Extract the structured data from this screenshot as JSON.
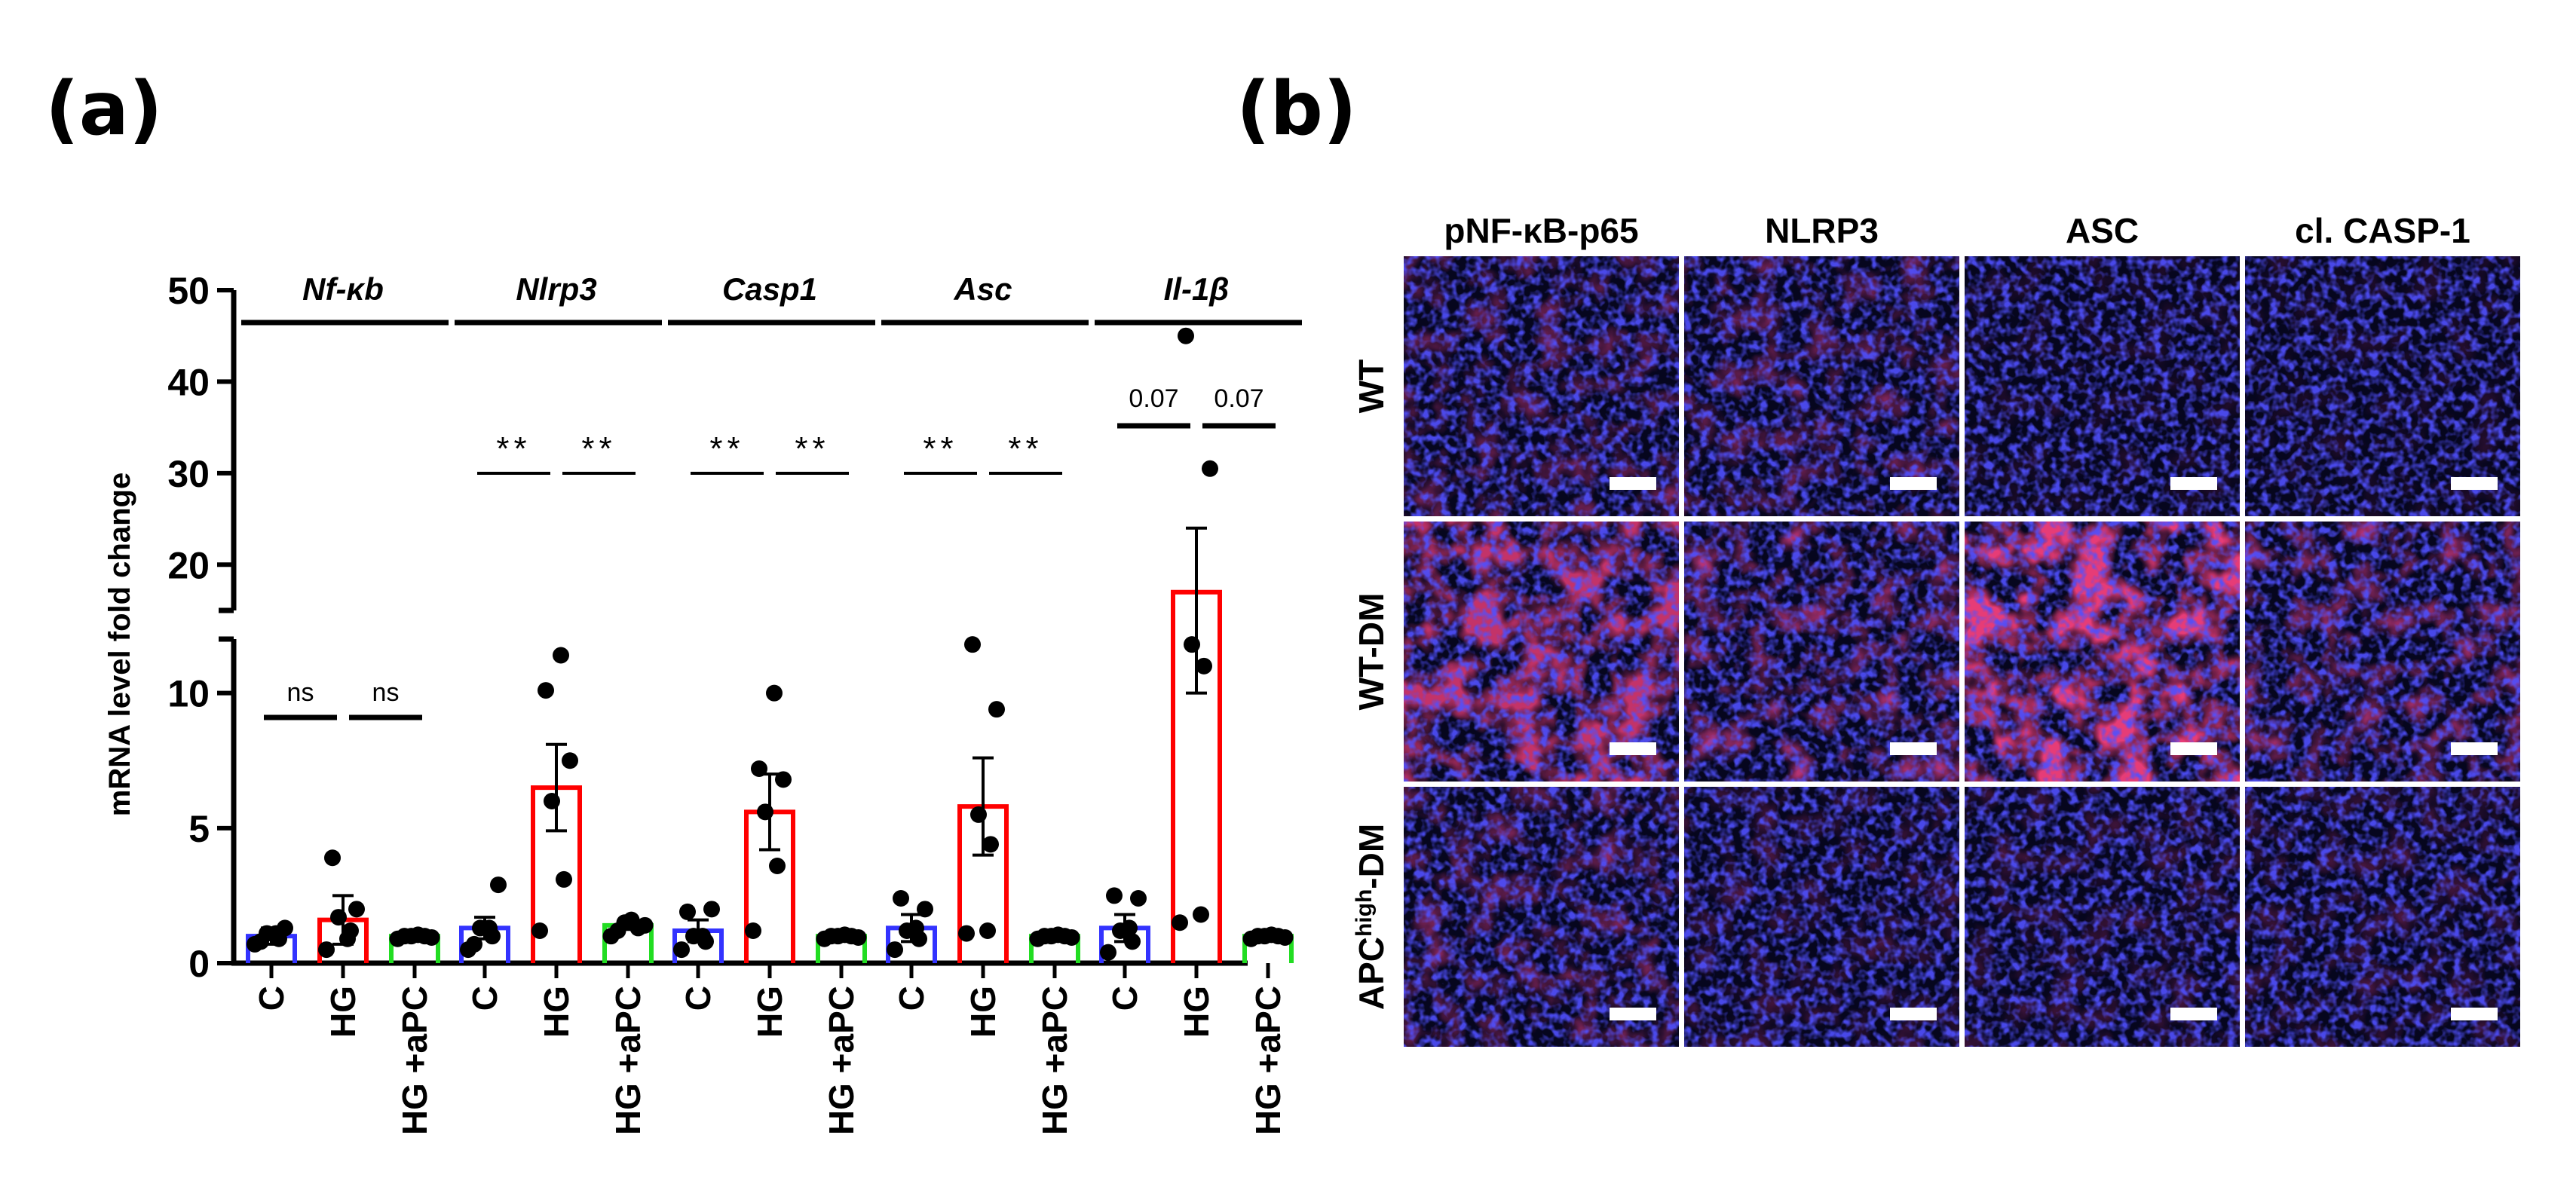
{
  "panel_a_label": "(a)",
  "panel_b_label": "(b)",
  "colors": {
    "C": "#3333ff",
    "HG": "#ff0000",
    "HG_aPC": "#22dd22",
    "tissue_blue": "#1a1adc",
    "tissue_red": "#c8103a"
  },
  "chart_data": {
    "type": "bar",
    "ylabel": "mRNA level fold change",
    "ylim_lower": [
      0,
      12
    ],
    "ylim_upper": [
      15,
      50
    ],
    "y_ticks_lower": [
      "0",
      "5",
      "10"
    ],
    "y_ticks_upper": [
      "20",
      "30",
      "40",
      "50"
    ],
    "categories": [
      "C",
      "HG",
      "HG +aPC"
    ],
    "genes": [
      {
        "name": "Nf-κb",
        "values": [
          1.0,
          1.6,
          1.0
        ],
        "errors": [
          0.3,
          0.9,
          0.05
        ],
        "points": [
          [
            0.7,
            0.9,
            1.1,
            1.3,
            0.8,
            1.1
          ],
          [
            0.5,
            1.2,
            1.7,
            2.0,
            3.9,
            0.9
          ],
          [
            0.9,
            1.0,
            1.0,
            1.05,
            1.0,
            0.95
          ]
        ],
        "comparisons": [
          "ns",
          "ns"
        ]
      },
      {
        "name": "Nlrp3",
        "values": [
          1.3,
          6.5,
          1.4
        ],
        "errors": [
          0.4,
          1.6,
          0.15
        ],
        "points": [
          [
            0.5,
            1.0,
            1.3,
            2.9,
            0.7,
            1.3
          ],
          [
            1.2,
            3.1,
            6.0,
            7.5,
            10.1,
            11.4
          ],
          [
            1.0,
            1.2,
            1.5,
            1.6,
            1.3,
            1.4
          ]
        ],
        "comparisons": [
          "**",
          "**"
        ]
      },
      {
        "name": "Casp1",
        "values": [
          1.2,
          5.6,
          1.0
        ],
        "errors": [
          0.4,
          1.4,
          0.05
        ],
        "points": [
          [
            0.5,
            0.8,
            1.0,
            2.0,
            1.9,
            1.0
          ],
          [
            1.2,
            3.6,
            5.6,
            6.8,
            7.2,
            10.0
          ],
          [
            0.9,
            1.0,
            1.0,
            1.05,
            1.0,
            0.95
          ]
        ],
        "comparisons": [
          "**",
          "**"
        ]
      },
      {
        "name": "Asc",
        "values": [
          1.3,
          5.8,
          1.0
        ],
        "errors": [
          0.5,
          1.8,
          0.05
        ],
        "points": [
          [
            0.5,
            0.9,
            1.2,
            2.0,
            2.4,
            1.3
          ],
          [
            1.1,
            4.4,
            5.5,
            9.4,
            11.8,
            1.2
          ],
          [
            0.9,
            1.0,
            1.0,
            1.05,
            1.0,
            0.95
          ]
        ],
        "comparisons": [
          "**",
          "**"
        ]
      },
      {
        "name": "Il-1β",
        "values": [
          1.3,
          17.0,
          1.0
        ],
        "errors": [
          0.5,
          7.0,
          0.05
        ],
        "points": [
          [
            0.4,
            0.8,
            1.2,
            2.4,
            2.5,
            1.3
          ],
          [
            1.5,
            11.0,
            11.8,
            30.5,
            45.0,
            1.8
          ],
          [
            0.9,
            1.0,
            1.0,
            1.05,
            1.0,
            0.95
          ]
        ],
        "comparisons": [
          "0.07",
          "0.07"
        ]
      }
    ]
  },
  "panel_b": {
    "columns": [
      "pNF-κB-p65",
      "NLRP3",
      "ASC",
      "cl. CASP-1"
    ],
    "rows": [
      {
        "label": "WT",
        "sup": "",
        "tail": ""
      },
      {
        "label": "WT-DM",
        "sup": "",
        "tail": ""
      },
      {
        "label": "APC",
        "sup": "high",
        "tail": "-DM"
      }
    ]
  }
}
